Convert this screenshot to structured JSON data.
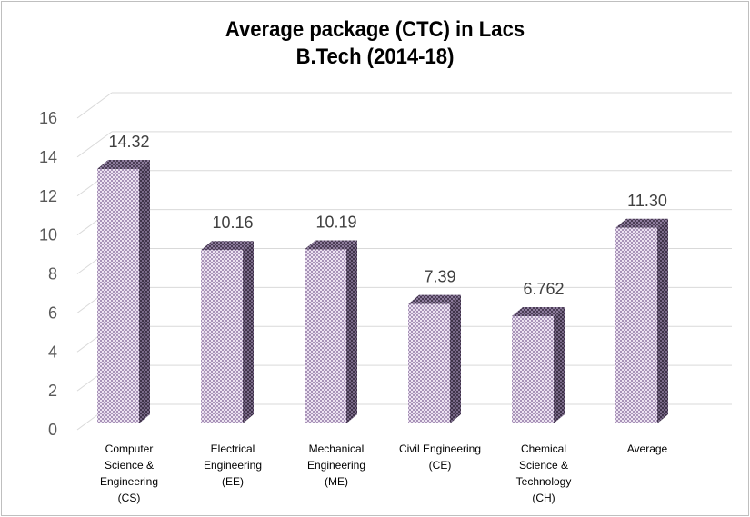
{
  "chart_data": {
    "type": "bar",
    "title_line1": "Average package (CTC) in Lacs",
    "title_line2": "B.Tech (2014-18)",
    "categories": [
      [
        "Computer",
        "Science &",
        "Engineering",
        "(CS)"
      ],
      [
        "Electrical",
        "Engineering",
        "(EE)"
      ],
      [
        "Mechanical",
        "Engineering",
        "(ME)"
      ],
      [
        "Civil Engineering",
        "(CE)"
      ],
      [
        "Chemical",
        "Science &",
        "Technology",
        "(CH)"
      ],
      [
        "Average"
      ]
    ],
    "values": [
      14.32,
      10.16,
      10.19,
      7.39,
      6.762,
      11.3
    ],
    "data_labels": [
      "14.32",
      "10.16",
      "10.19",
      "7.39",
      "6.762",
      "11.30"
    ],
    "ylim": [
      0,
      16
    ],
    "yticks": [
      "0",
      "2",
      "4",
      "6",
      "8",
      "10",
      "12",
      "14",
      "16"
    ],
    "grid": true,
    "style": "3d-column",
    "colors": {
      "bar_face": "#d9c8e4",
      "bar_dark": "#5e4f6c",
      "grid": "#d9d9d9"
    }
  }
}
